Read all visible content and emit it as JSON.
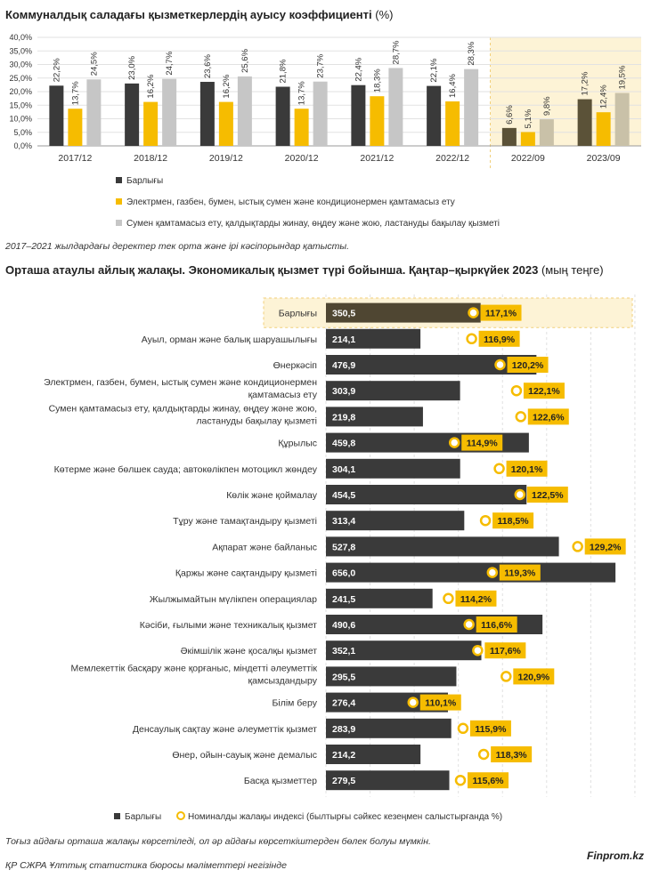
{
  "chart1": {
    "title": "Коммуналдық саладағы қызметкерлердің ауысу коэффициенті",
    "unit": "(%)",
    "note": "2017–2021 жылдардағы деректер тек орта және ірі кәсіпорындар қатысты.",
    "colors": {
      "s1": "#3a3a3a",
      "s1_hl": "#5b5238",
      "s2": "#f6bc00",
      "s3": "#c6c6c6",
      "s3_hl": "#c9c1a8",
      "highlight_bg": "#fdf3d6",
      "highlight_border": "#f1cf7a"
    }
  },
  "chart2": {
    "title": "Орташа атаулы айлық жалақы. Экономикалық қызмет түрі бойынша. Қаңтар–қыркүйек 2023",
    "unit": "(мың теңге)",
    "note": "Тоғыз айдағы орташа жалақы көрсетіледі, ол әр айдағы көрсеткіштерден бөлек болуы мүмкін.",
    "colors": {
      "bar": "#3a3a3a",
      "bar_hl": "#4f4632",
      "index": "#f6bc00",
      "highlight_bg": "#fdf3d6",
      "highlight_border": "#f1cf7a"
    }
  },
  "footer": {
    "source": "ҚР СЖРА Ұлттық статистика бюросы мәліметтері негізінде",
    "brand": "Finprom.kz"
  },
  "chart_data": [
    {
      "type": "bar",
      "title": "Коммуналдық саладағы қызметкерлердің ауысу коэффициенті (%)",
      "categories": [
        "2017/12",
        "2018/12",
        "2019/12",
        "2020/12",
        "2021/12",
        "2022/12",
        "2022/09",
        "2023/09"
      ],
      "highlighted_categories": [
        "2022/09",
        "2023/09"
      ],
      "ylim": [
        0,
        40
      ],
      "yticks": [
        "0,0%",
        "5,0%",
        "10,0%",
        "15,0%",
        "20,0%",
        "25,0%",
        "30,0%",
        "35,0%",
        "40,0%"
      ],
      "grid": true,
      "legend_position": "bottom",
      "series": [
        {
          "name": "Барлығы",
          "values": [
            22.2,
            23.0,
            23.6,
            21.8,
            22.4,
            22.1,
            6.6,
            17.2
          ],
          "labels": [
            "22,2%",
            "23,0%",
            "23,6%",
            "21,8%",
            "22,4%",
            "22,1%",
            "6,6%",
            "17,2%"
          ]
        },
        {
          "name": "Электрмен, газбен, бумен, ыстық сумен және кондиционермен қамтамасыз ету",
          "values": [
            13.7,
            16.2,
            16.2,
            13.7,
            18.3,
            16.4,
            5.1,
            12.4
          ],
          "labels": [
            "13,7%",
            "16,2%",
            "16,2%",
            "13,7%",
            "18,3%",
            "16,4%",
            "5,1%",
            "12,4%"
          ]
        },
        {
          "name": "Сумен қамтамасыз ету, қалдықтарды жинау, өңдеу және жою, ластануды бақылау қызметі",
          "values": [
            24.5,
            24.7,
            25.6,
            23.7,
            28.7,
            28.3,
            9.8,
            19.5
          ],
          "labels": [
            "24,5%",
            "24,7%",
            "25,6%",
            "23,7%",
            "28,7%",
            "28,3%",
            "9,8%",
            "19,5%"
          ]
        }
      ]
    },
    {
      "type": "bar",
      "orientation": "horizontal",
      "title": "Орташа атаулы айлық жалақы. Экономикалық қызмет түрі бойынша. Қаңтар–қыркүйек 2023 (мың теңге)",
      "xlim_salary": [
        0,
        700
      ],
      "xlim_index": [
        100,
        134
      ],
      "grid": true,
      "legend_position": "bottom",
      "highlighted_categories": [
        "Барлығы"
      ],
      "categories": [
        [
          "Барлығы"
        ],
        [
          "Ауыл, орман және балық шаруашылығы"
        ],
        [
          "Өнеркәсіп"
        ],
        [
          "Электрмен, газбен, бумен, ыстық сумен және кондиционермен",
          "қамтамасыз ету"
        ],
        [
          "Сумен қамтамасыз ету, қалдықтарды жинау, өңдеу және жою,",
          "ластануды бақылау қызметі"
        ],
        [
          "Құрылыс"
        ],
        [
          "Көтерме және бөлшек сауда; автокөлікпен мотоцикл жөндеу"
        ],
        [
          "Көлік және қоймалау"
        ],
        [
          "Тұру және тамақтандыру қызметі"
        ],
        [
          "Ақпарат және байланыс"
        ],
        [
          "Қаржы және сақтандыру қызметі"
        ],
        [
          "Жылжымайтын мүлікпен операциялар"
        ],
        [
          "Кәсіби, ғылыми және техникалық қызмет"
        ],
        [
          "Әкімшілік және қосалқы қызмет "
        ],
        [
          "Мемлекеттік басқару және қорғаныс, міндетті әлеуметтік",
          "қамсыздандыру"
        ],
        [
          "Білім беру"
        ],
        [
          "Денсаулық сақтау және әлеуметтік қызмет"
        ],
        [
          "Өнер, ойын-сауық және демалыс"
        ],
        [
          "Басқа қызметтер"
        ]
      ],
      "series": [
        {
          "name": "Барлығы",
          "values": [
            350.5,
            214.1,
            476.9,
            303.9,
            219.8,
            459.8,
            304.1,
            454.5,
            313.4,
            527.8,
            656.0,
            241.5,
            490.6,
            352.1,
            295.5,
            276.4,
            283.9,
            214.2,
            279.5
          ],
          "labels": [
            "350,5",
            "214,1",
            "476,9",
            "303,9",
            "219,8",
            "459,8",
            "304,1",
            "454,5",
            "313,4",
            "527,8",
            "656,0",
            "241,5",
            "490,6",
            "352,1",
            "295,5",
            "276,4",
            "283,9",
            "214,2",
            "279,5"
          ]
        },
        {
          "name": "Номиналды жалақы индексі (былтырғы сәйкес кезеңмен салыстырғанда %)",
          "values": [
            117.1,
            116.9,
            120.2,
            122.1,
            122.6,
            114.9,
            120.1,
            122.5,
            118.5,
            129.2,
            119.3,
            114.2,
            116.6,
            117.6,
            120.9,
            110.1,
            115.9,
            118.3,
            115.6
          ],
          "labels": [
            "117,1%",
            "116,9%",
            "120,2%",
            "122,1%",
            "122,6%",
            "114,9%",
            "120,1%",
            "122,5%",
            "118,5%",
            "129,2%",
            "119,3%",
            "114,2%",
            "116,6%",
            "117,6%",
            "120,9%",
            "110,1%",
            "115,9%",
            "118,3%",
            "115,6%"
          ]
        }
      ]
    }
  ]
}
